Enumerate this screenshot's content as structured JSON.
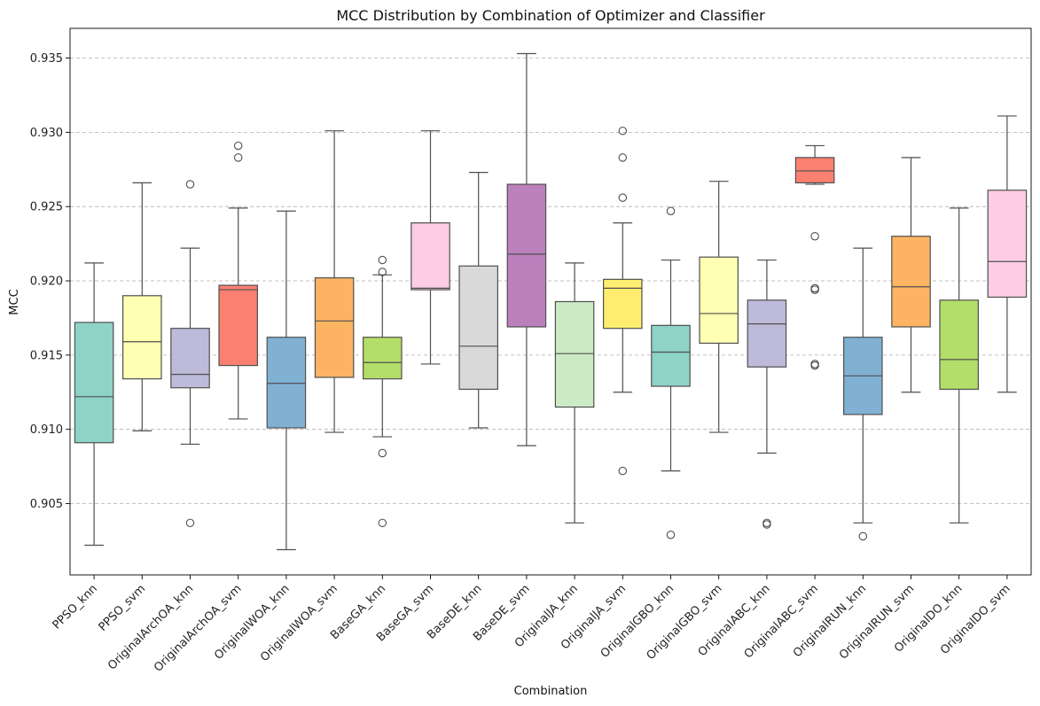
{
  "chart_data": {
    "type": "box",
    "title": "MCC Distribution by Combination of Optimizer and Classifier",
    "xlabel": "Combination",
    "ylabel": "MCC",
    "ylim": [
      0.9002,
      0.937
    ],
    "yticks": [
      "0.905",
      "0.910",
      "0.915",
      "0.920",
      "0.925",
      "0.930",
      "0.935"
    ],
    "grid": "y-dashed",
    "series": [
      {
        "name": "PPSO_knn",
        "color": "#8dd3c7",
        "whisker_low": 0.9022,
        "q1": 0.9091,
        "median": 0.9122,
        "q3": 0.9172,
        "whisker_high": 0.9212,
        "outliers": []
      },
      {
        "name": "PPSO_svm",
        "color": "#ffffb3",
        "whisker_low": 0.9099,
        "q1": 0.9134,
        "median": 0.9159,
        "q3": 0.919,
        "whisker_high": 0.9266,
        "outliers": []
      },
      {
        "name": "OriginalArchOA_knn",
        "color": "#bebada",
        "whisker_low": 0.909,
        "q1": 0.9128,
        "median": 0.9137,
        "q3": 0.9168,
        "whisker_high": 0.9222,
        "outliers": [
          0.9265,
          0.9037
        ]
      },
      {
        "name": "OriginalArchOA_svm",
        "color": "#fb8072",
        "whisker_low": 0.9107,
        "q1": 0.9143,
        "median": 0.9194,
        "q3": 0.9197,
        "whisker_high": 0.9249,
        "outliers": [
          0.9291,
          0.9283
        ]
      },
      {
        "name": "OriginalWOA_knn",
        "color": "#80b1d3",
        "whisker_low": 0.9019,
        "q1": 0.9101,
        "median": 0.9131,
        "q3": 0.9162,
        "whisker_high": 0.9247,
        "outliers": []
      },
      {
        "name": "OriginalWOA_svm",
        "color": "#fdb462",
        "whisker_low": 0.9098,
        "q1": 0.9135,
        "median": 0.9173,
        "q3": 0.9202,
        "whisker_high": 0.9301,
        "outliers": []
      },
      {
        "name": "BaseGA_knn",
        "color": "#b3de69",
        "whisker_low": 0.9095,
        "q1": 0.9134,
        "median": 0.9145,
        "q3": 0.9162,
        "whisker_high": 0.9204,
        "outliers": [
          0.9214,
          0.9206,
          0.9084,
          0.9037
        ]
      },
      {
        "name": "BaseGA_svm",
        "color": "#fccde5",
        "whisker_low": 0.9144,
        "q1": 0.9194,
        "median": 0.9195,
        "q3": 0.9239,
        "whisker_high": 0.9301,
        "outliers": []
      },
      {
        "name": "BaseDE_knn",
        "color": "#d9d9d9",
        "whisker_low": 0.9101,
        "q1": 0.9127,
        "median": 0.9156,
        "q3": 0.921,
        "whisker_high": 0.9273,
        "outliers": []
      },
      {
        "name": "BaseDE_svm",
        "color": "#bc80bd",
        "whisker_low": 0.9089,
        "q1": 0.9169,
        "median": 0.9218,
        "q3": 0.9265,
        "whisker_high": 0.9353,
        "outliers": []
      },
      {
        "name": "OriginalJA_knn",
        "color": "#ccebc5",
        "whisker_low": 0.9037,
        "q1": 0.9115,
        "median": 0.9151,
        "q3": 0.9186,
        "whisker_high": 0.9212,
        "outliers": []
      },
      {
        "name": "OriginalJA_svm",
        "color": "#ffed6f",
        "whisker_low": 0.9125,
        "q1": 0.9168,
        "median": 0.9195,
        "q3": 0.9201,
        "whisker_high": 0.9239,
        "outliers": [
          0.9301,
          0.9283,
          0.9256,
          0.9072
        ]
      },
      {
        "name": "OriginalGBO_knn",
        "color": "#8dd3c7",
        "whisker_low": 0.9072,
        "q1": 0.9129,
        "median": 0.9152,
        "q3": 0.917,
        "whisker_high": 0.9214,
        "outliers": [
          0.9247,
          0.9029
        ]
      },
      {
        "name": "OriginalGBO_svm",
        "color": "#ffffb3",
        "whisker_low": 0.9098,
        "q1": 0.9158,
        "median": 0.9178,
        "q3": 0.9216,
        "whisker_high": 0.9267,
        "outliers": []
      },
      {
        "name": "OriginalABC_knn",
        "color": "#bebada",
        "whisker_low": 0.9084,
        "q1": 0.9142,
        "median": 0.9171,
        "q3": 0.9187,
        "whisker_high": 0.9214,
        "outliers": [
          0.9037,
          0.9036
        ]
      },
      {
        "name": "OriginalABC_svm",
        "color": "#fb8072",
        "whisker_low": 0.9265,
        "q1": 0.9266,
        "median": 0.9274,
        "q3": 0.9283,
        "whisker_high": 0.9291,
        "outliers": [
          0.923,
          0.9195,
          0.9194,
          0.9144,
          0.9143
        ]
      },
      {
        "name": "OriginalRUN_knn",
        "color": "#80b1d3",
        "whisker_low": 0.9037,
        "q1": 0.911,
        "median": 0.9136,
        "q3": 0.9162,
        "whisker_high": 0.9222,
        "outliers": [
          0.9028
        ]
      },
      {
        "name": "OriginalRUN_svm",
        "color": "#fdb462",
        "whisker_low": 0.9125,
        "q1": 0.9169,
        "median": 0.9196,
        "q3": 0.923,
        "whisker_high": 0.9283,
        "outliers": []
      },
      {
        "name": "OriginalDO_knn",
        "color": "#b3de69",
        "whisker_low": 0.9037,
        "q1": 0.9127,
        "median": 0.9147,
        "q3": 0.9187,
        "whisker_high": 0.9249,
        "outliers": []
      },
      {
        "name": "OriginalDO_svm",
        "color": "#fccde5",
        "whisker_low": 0.9125,
        "q1": 0.9189,
        "median": 0.9213,
        "q3": 0.9261,
        "whisker_high": 0.9311,
        "outliers": []
      }
    ]
  }
}
